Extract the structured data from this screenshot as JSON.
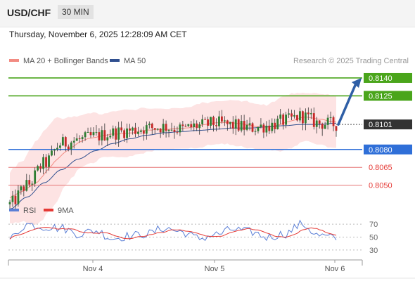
{
  "header": {
    "symbol": "USD/CHF",
    "timeframe": "30 MIN"
  },
  "datetime": "Thursday, November 6, 2025 12:28:09 AM CET",
  "legend": {
    "ma20": "MA 20 + Bollinger Bands",
    "ma50": "MA 50",
    "rsi": "RSI",
    "rsi_ma": "9MA"
  },
  "watermark": "Research © 2025 Trading Central",
  "levels": [
    {
      "value": "0.8140",
      "kind": "resistance"
    },
    {
      "value": "0.8125",
      "kind": "resistance"
    },
    {
      "value": "0.8101",
      "kind": "current"
    },
    {
      "value": "0.8080",
      "kind": "pivot"
    },
    {
      "value": "0.8065",
      "kind": "support"
    },
    {
      "value": "0.8050",
      "kind": "support"
    }
  ],
  "colors": {
    "resistance": "#4aa51b",
    "pivot": "#2f6fd8",
    "support": "#e57373",
    "current": "#333333",
    "arrow": "#2f5fa6",
    "rsi": "#5b7fd6",
    "rsi_ma": "#e53935",
    "ma20": "#f28b82",
    "ma50": "#2f4f8f"
  },
  "chart_data": {
    "type": "candlestick",
    "price_range": [
      0.8038,
      0.815
    ],
    "x_labels": [
      "Nov 4",
      "Nov 5",
      "Nov 6"
    ],
    "price_anchors": [
      0.8034,
      0.805,
      0.8068,
      0.8085,
      0.8088,
      0.8091,
      0.8094,
      0.8096,
      0.8098,
      0.8099,
      0.8097,
      0.81,
      0.8102,
      0.81,
      0.8098,
      0.81,
      0.8104,
      0.8108,
      0.8102,
      0.8101
    ],
    "ma50_anchors": [
      0.803,
      0.804,
      0.8052,
      0.8063,
      0.8072,
      0.8079,
      0.8085,
      0.8089,
      0.8092,
      0.8094,
      0.8095,
      0.8096,
      0.8097,
      0.8098,
      0.8098,
      0.8099,
      0.81,
      0.8101,
      0.8101,
      0.8102
    ],
    "rsi_range": [
      20,
      80
    ],
    "rsi_levels": [
      30,
      50,
      70
    ],
    "rsi_anchors": [
      48,
      70,
      66,
      64,
      55,
      60,
      48,
      52,
      55,
      64,
      58,
      48,
      54,
      62,
      58,
      50,
      55,
      70,
      52,
      48
    ]
  }
}
